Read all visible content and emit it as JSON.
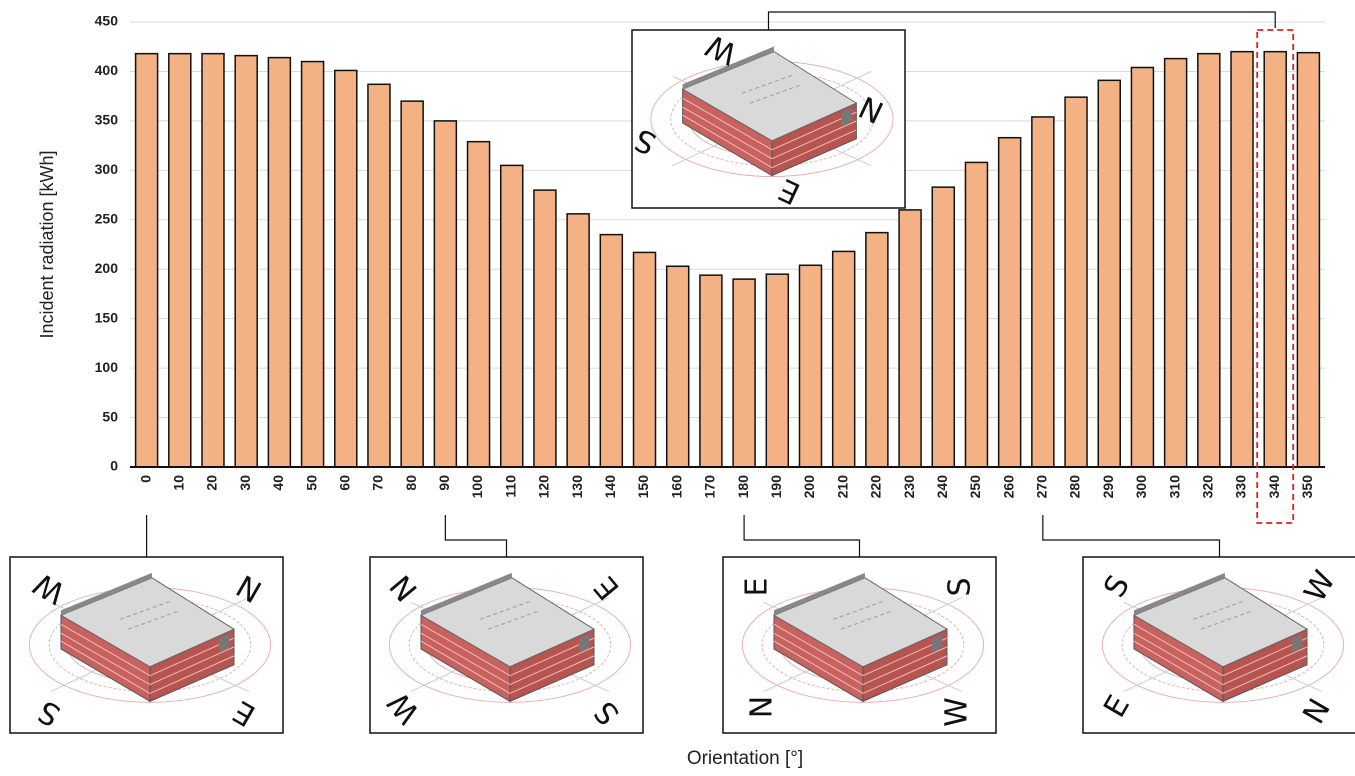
{
  "chart_data": {
    "type": "bar",
    "x_label": "Orientation [°]",
    "y_label": "Incident radiation [kWh]",
    "categories": [
      "0",
      "10",
      "20",
      "30",
      "40",
      "50",
      "60",
      "70",
      "80",
      "90",
      "100",
      "110",
      "120",
      "130",
      "140",
      "150",
      "160",
      "170",
      "180",
      "190",
      "200",
      "210",
      "220",
      "230",
      "240",
      "250",
      "260",
      "270",
      "280",
      "290",
      "300",
      "310",
      "320",
      "330",
      "340",
      "350"
    ],
    "values": [
      418,
      418,
      418,
      416,
      414,
      410,
      401,
      387,
      370,
      350,
      329,
      305,
      280,
      256,
      235,
      217,
      203,
      194,
      190,
      195,
      204,
      218,
      237,
      260,
      283,
      308,
      333,
      354,
      374,
      391,
      404,
      413,
      418,
      420,
      420,
      419
    ],
    "color": "#f4b183",
    "ylim": [
      0,
      450
    ],
    "yticks": [
      0,
      50,
      100,
      150,
      200,
      250,
      300,
      350,
      400,
      450
    ],
    "grid": true
  },
  "insets": [
    {
      "compass": [
        "W",
        "N",
        "S",
        "E"
      ]
    },
    {
      "compass": [
        "N",
        "E",
        "W",
        "S"
      ]
    },
    {
      "compass": [
        "E",
        "S",
        "N",
        "W"
      ]
    },
    {
      "compass": [
        "S",
        "W",
        "E",
        "N"
      ]
    },
    {
      "compass": [
        "W",
        "N",
        "S",
        "E"
      ]
    }
  ]
}
